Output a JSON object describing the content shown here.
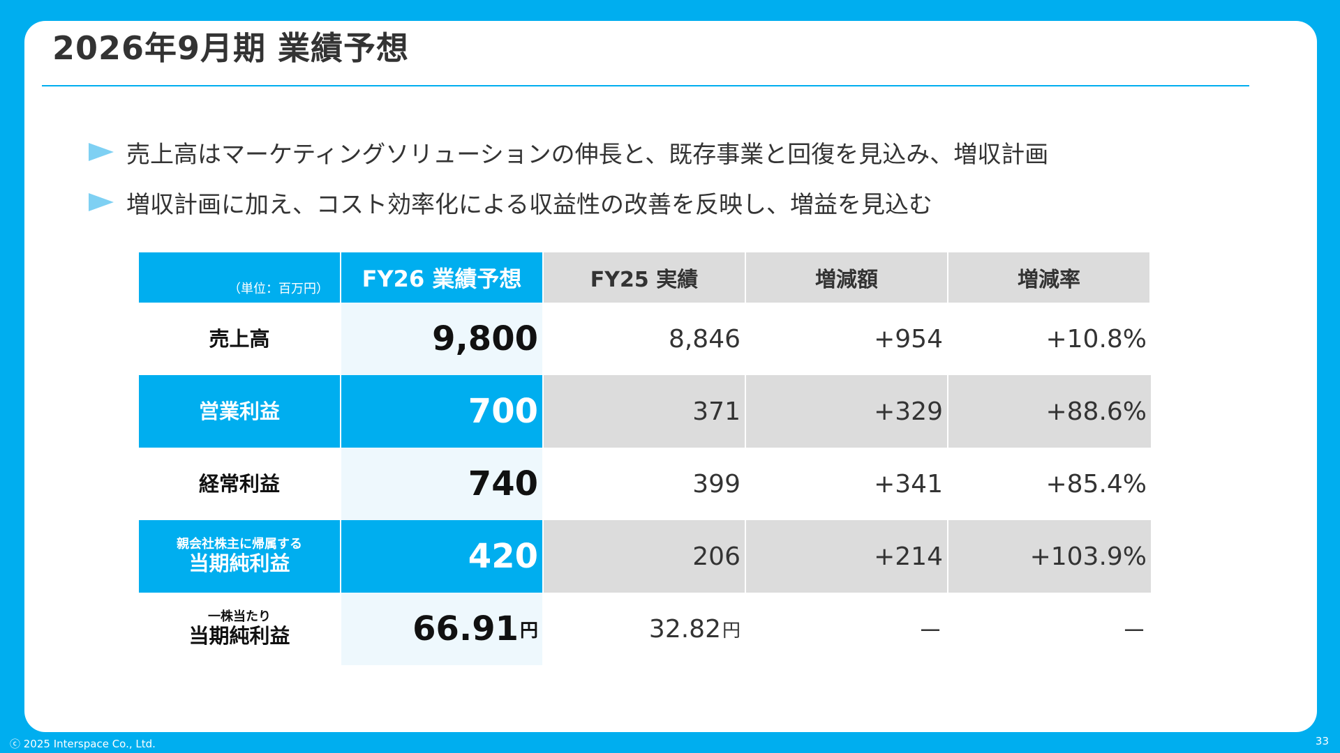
{
  "slide": {
    "title": "2026年9月期 業績予想",
    "bullets": [
      "売上高はマーケティングソリューションの伸長と、既存事業と回復を見込み、増収計画",
      "増収計画に加え、コスト効率化による収益性の改善を反映し、増益を見込む"
    ],
    "footer": "ⓒ 2025 Interspace Co., Ltd.",
    "page_number": "33",
    "colors": {
      "accent": "#00aeef",
      "gray": "#dcdcdc",
      "light_blue": "#eef8fd"
    }
  },
  "table": {
    "unit": "（単位：百万円）",
    "headers": [
      "FY26 業績予想",
      "FY25 実績",
      "増減額",
      "増減率"
    ],
    "rows": [
      {
        "label_small": "",
        "label": "売上高",
        "fy26": "9,800",
        "fy25": "8,846",
        "diff": "+954",
        "rate": "+10.8%"
      },
      {
        "label_small": "",
        "label": "営業利益",
        "fy26": "700",
        "fy25": "371",
        "diff": "+329",
        "rate": "+88.6%"
      },
      {
        "label_small": "",
        "label": "経常利益",
        "fy26": "740",
        "fy25": "399",
        "diff": "+341",
        "rate": "+85.4%"
      },
      {
        "label_small": "親会社株主に帰属する",
        "label": "当期純利益",
        "fy26": "420",
        "fy25": "206",
        "diff": "+214",
        "rate": "+103.9%"
      },
      {
        "label_small": "一株当たり",
        "label": "当期純利益",
        "fy26": "66.91",
        "fy26_unit": "円",
        "fy25": "32.82",
        "fy25_unit": "円",
        "diff": "－",
        "rate": "－"
      }
    ]
  }
}
